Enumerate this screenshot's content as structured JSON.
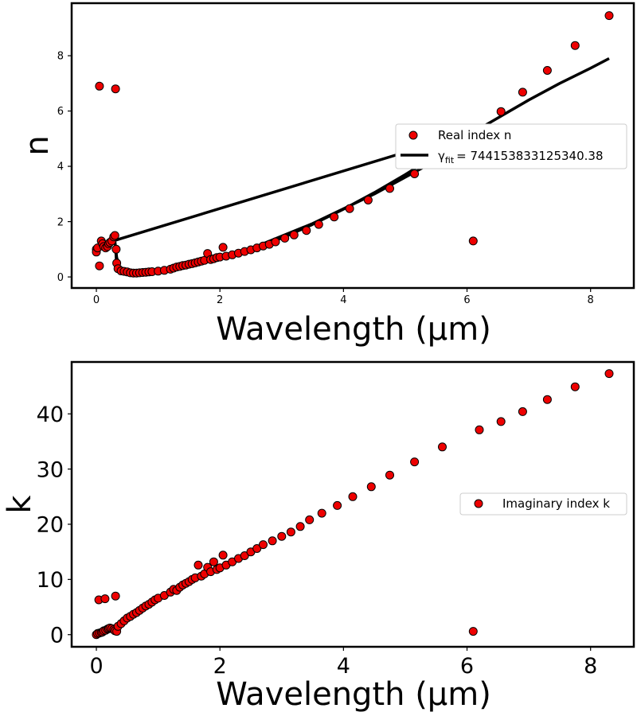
{
  "chart_data": [
    {
      "type": "scatter",
      "xlabel": "Wavelength (µm)",
      "ylabel": "n",
      "xlim": [
        -0.4,
        8.7
      ],
      "ylim": [
        -0.4,
        9.9
      ],
      "xticks": [
        "0",
        "2",
        "4",
        "6",
        "8"
      ],
      "yticks": [
        "0",
        "2",
        "4",
        "6",
        "8"
      ],
      "legend": {
        "position": "center-right",
        "entries": [
          "Real index n",
          "γfit = 744153833125340.38"
        ]
      },
      "fit_line_label": {
        "symbol": "γ",
        "subscript": "fit",
        "value": "= 744153833125340.38"
      },
      "series": [
        {
          "name": "Real index n",
          "points": [
            [
              0.0,
              1.0
            ],
            [
              0.0,
              0.9
            ],
            [
              0.02,
              1.05
            ],
            [
              0.05,
              0.4
            ],
            [
              0.05,
              6.9
            ],
            [
              0.08,
              1.3
            ],
            [
              0.1,
              1.2
            ],
            [
              0.12,
              1.1
            ],
            [
              0.15,
              1.05
            ],
            [
              0.18,
              1.1
            ],
            [
              0.2,
              1.2
            ],
            [
              0.22,
              1.25
            ],
            [
              0.25,
              1.3
            ],
            [
              0.28,
              1.45
            ],
            [
              0.3,
              1.5
            ],
            [
              0.31,
              6.8
            ],
            [
              0.32,
              1.0
            ],
            [
              0.33,
              0.5
            ],
            [
              0.35,
              0.3
            ],
            [
              0.4,
              0.22
            ],
            [
              0.45,
              0.2
            ],
            [
              0.5,
              0.18
            ],
            [
              0.55,
              0.15
            ],
            [
              0.6,
              0.14
            ],
            [
              0.65,
              0.14
            ],
            [
              0.7,
              0.15
            ],
            [
              0.75,
              0.16
            ],
            [
              0.8,
              0.17
            ],
            [
              0.85,
              0.18
            ],
            [
              0.9,
              0.19
            ],
            [
              1.0,
              0.21
            ],
            [
              1.1,
              0.24
            ],
            [
              1.2,
              0.28
            ],
            [
              1.25,
              0.32
            ],
            [
              1.3,
              0.36
            ],
            [
              1.35,
              0.38
            ],
            [
              1.4,
              0.41
            ],
            [
              1.45,
              0.43
            ],
            [
              1.5,
              0.46
            ],
            [
              1.55,
              0.48
            ],
            [
              1.6,
              0.51
            ],
            [
              1.65,
              0.54
            ],
            [
              1.7,
              0.57
            ],
            [
              1.75,
              0.6
            ],
            [
              1.8,
              0.85
            ],
            [
              1.85,
              0.63
            ],
            [
              1.9,
              0.66
            ],
            [
              1.95,
              0.7
            ],
            [
              2.0,
              0.72
            ],
            [
              2.05,
              1.07
            ],
            [
              2.1,
              0.75
            ],
            [
              2.2,
              0.8
            ],
            [
              2.3,
              0.86
            ],
            [
              2.4,
              0.92
            ],
            [
              2.5,
              0.98
            ],
            [
              2.6,
              1.05
            ],
            [
              2.7,
              1.12
            ],
            [
              2.8,
              1.18
            ],
            [
              2.9,
              1.27
            ],
            [
              3.05,
              1.4
            ],
            [
              3.2,
              1.52
            ],
            [
              3.4,
              1.68
            ],
            [
              3.6,
              1.9
            ],
            [
              3.85,
              2.17
            ],
            [
              4.1,
              2.47
            ],
            [
              4.4,
              2.78
            ],
            [
              4.75,
              3.2
            ],
            [
              5.15,
              3.73
            ],
            [
              5.6,
              4.45
            ],
            [
              6.1,
              1.3
            ],
            [
              6.2,
              5.3
            ],
            [
              6.55,
              5.98
            ],
            [
              6.9,
              6.68
            ],
            [
              7.3,
              7.47
            ],
            [
              7.75,
              8.37
            ],
            [
              8.3,
              9.45
            ]
          ]
        }
      ],
      "fit_line": {
        "points": [
          [
            0.0,
            1.05
          ],
          [
            0.3,
            1.32
          ],
          [
            5.5,
            4.85
          ],
          [
            5.9,
            5.12
          ],
          [
            6.2,
            5.4
          ],
          [
            5.8,
            4.6
          ],
          [
            5.2,
            3.85
          ],
          [
            4.5,
            3.0
          ],
          [
            3.5,
            1.93
          ],
          [
            2.5,
            1.02
          ],
          [
            2.0,
            0.73
          ],
          [
            1.5,
            0.47
          ],
          [
            1.0,
            0.23
          ],
          [
            0.6,
            0.13
          ],
          [
            0.4,
            0.21
          ],
          [
            0.33,
            0.7
          ],
          [
            0.3,
            1.3
          ],
          [
            0.31,
            1.1
          ],
          [
            0.33,
            0.33
          ],
          [
            0.6,
            0.14
          ],
          [
            1.0,
            0.24
          ],
          [
            1.5,
            0.48
          ],
          [
            2.0,
            0.72
          ],
          [
            2.5,
            1.0
          ],
          [
            3.0,
            1.4
          ],
          [
            3.5,
            1.9
          ],
          [
            4.0,
            2.45
          ],
          [
            4.5,
            3.05
          ],
          [
            5.0,
            3.7
          ],
          [
            5.5,
            4.4
          ],
          [
            6.0,
            5.1
          ],
          [
            6.5,
            5.75
          ],
          [
            7.0,
            6.4
          ],
          [
            7.5,
            7.0
          ],
          [
            8.0,
            7.55
          ],
          [
            8.3,
            7.9
          ]
        ]
      }
    },
    {
      "type": "scatter",
      "xlabel": "Wavelength (µm)",
      "ylabel": "k",
      "xlim": [
        -0.4,
        8.7
      ],
      "ylim": [
        -2.2,
        49.4
      ],
      "xticks": [
        "0",
        "2",
        "4",
        "6",
        "8"
      ],
      "yticks": [
        "0",
        "10",
        "20",
        "30",
        "40"
      ],
      "legend": {
        "position": "center-right",
        "entries": [
          "Imaginary index k"
        ]
      },
      "series": [
        {
          "name": "Imaginary index k",
          "points": [
            [
              0.0,
              0.0
            ],
            [
              0.02,
              0.2
            ],
            [
              0.04,
              6.3
            ],
            [
              0.05,
              0.3
            ],
            [
              0.08,
              0.4
            ],
            [
              0.1,
              0.5
            ],
            [
              0.12,
              0.7
            ],
            [
              0.14,
              6.5
            ],
            [
              0.15,
              0.8
            ],
            [
              0.18,
              1.0
            ],
            [
              0.2,
              1.1
            ],
            [
              0.22,
              1.2
            ],
            [
              0.25,
              1.1
            ],
            [
              0.28,
              0.9
            ],
            [
              0.3,
              0.7
            ],
            [
              0.31,
              7.0
            ],
            [
              0.33,
              0.6
            ],
            [
              0.35,
              1.5
            ],
            [
              0.4,
              2.0
            ],
            [
              0.45,
              2.5
            ],
            [
              0.5,
              3.0
            ],
            [
              0.55,
              3.3
            ],
            [
              0.6,
              3.7
            ],
            [
              0.65,
              4.0
            ],
            [
              0.7,
              4.4
            ],
            [
              0.75,
              4.8
            ],
            [
              0.8,
              5.2
            ],
            [
              0.85,
              5.5
            ],
            [
              0.9,
              5.9
            ],
            [
              0.95,
              6.3
            ],
            [
              1.0,
              6.6
            ],
            [
              1.1,
              7.1
            ],
            [
              1.2,
              7.7
            ],
            [
              1.25,
              8.2
            ],
            [
              1.3,
              8.0
            ],
            [
              1.35,
              8.6
            ],
            [
              1.4,
              9.0
            ],
            [
              1.45,
              9.3
            ],
            [
              1.5,
              9.6
            ],
            [
              1.55,
              10.0
            ],
            [
              1.6,
              10.3
            ],
            [
              1.65,
              12.6
            ],
            [
              1.7,
              10.6
            ],
            [
              1.75,
              11.0
            ],
            [
              1.8,
              12.2
            ],
            [
              1.85,
              11.4
            ],
            [
              1.9,
              13.2
            ],
            [
              1.95,
              11.8
            ],
            [
              2.0,
              12.1
            ],
            [
              2.05,
              14.4
            ],
            [
              2.1,
              12.6
            ],
            [
              2.2,
              13.2
            ],
            [
              2.3,
              13.8
            ],
            [
              2.4,
              14.3
            ],
            [
              2.5,
              15.0
            ],
            [
              2.6,
              15.6
            ],
            [
              2.7,
              16.3
            ],
            [
              2.85,
              17.0
            ],
            [
              3.0,
              17.8
            ],
            [
              3.15,
              18.6
            ],
            [
              3.3,
              19.6
            ],
            [
              3.45,
              20.8
            ],
            [
              3.65,
              22.0
            ],
            [
              3.9,
              23.4
            ],
            [
              4.15,
              25.0
            ],
            [
              4.45,
              26.8
            ],
            [
              4.75,
              28.9
            ],
            [
              5.15,
              31.3
            ],
            [
              5.6,
              34.0
            ],
            [
              6.1,
              0.6
            ],
            [
              6.2,
              37.1
            ],
            [
              6.55,
              38.6
            ],
            [
              6.9,
              40.4
            ],
            [
              7.3,
              42.6
            ],
            [
              7.75,
              44.9
            ],
            [
              8.3,
              47.3
            ]
          ]
        }
      ]
    }
  ]
}
